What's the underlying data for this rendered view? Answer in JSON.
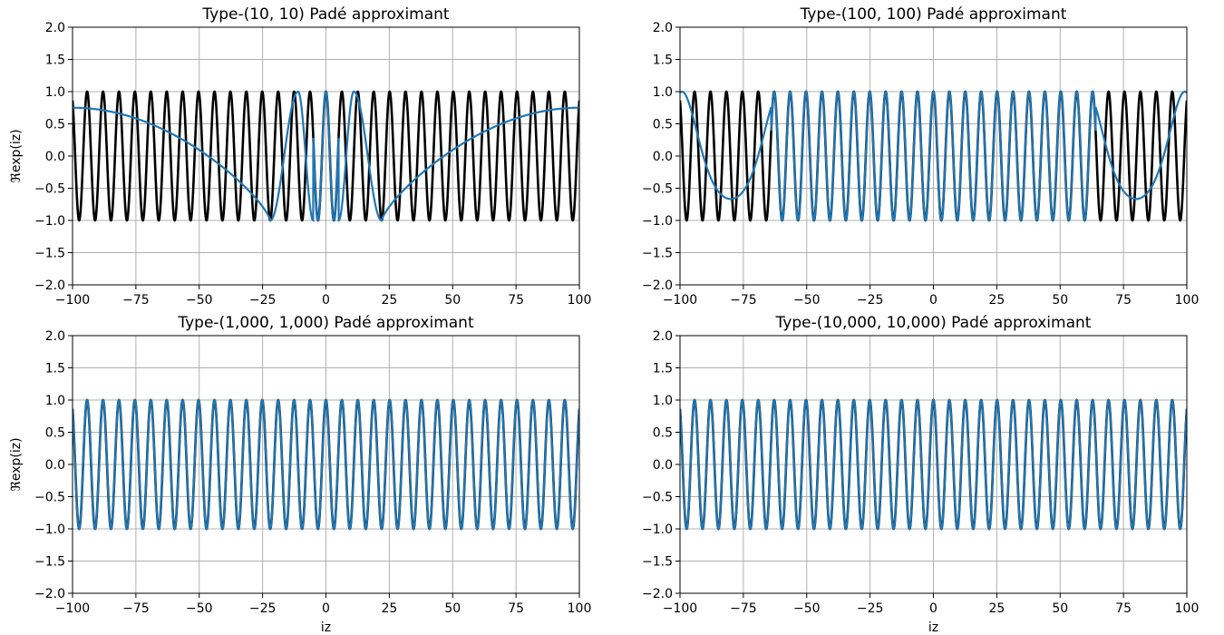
{
  "chart_data": [
    {
      "type": "line",
      "title": "Type-(10, 10) Padé approximant",
      "xlabel": "",
      "ylabel": "ℜexp(iz)",
      "xlim": [
        -100,
        100
      ],
      "ylim": [
        -2.0,
        2.0
      ],
      "xticks": [
        "−100",
        "−75",
        "−50",
        "−25",
        "0",
        "25",
        "50",
        "75",
        "100"
      ],
      "yticks": [
        "−2.0",
        "−1.5",
        "−1.0",
        "−0.5",
        "0.0",
        "0.5",
        "1.0",
        "1.5",
        "2.0"
      ],
      "grid": true,
      "series": [
        {
          "color": "#000000",
          "function": "cos(x)",
          "approx_kind": "exact"
        },
        {
          "color": "#1f77b4",
          "function": "Re of type-(10,10) Padé approximant of exp(ix)",
          "approx_kind": "pade",
          "n": 10
        }
      ]
    },
    {
      "type": "line",
      "title": "Type-(100, 100) Padé approximant",
      "xlabel": "",
      "ylabel": "",
      "xlim": [
        -100,
        100
      ],
      "ylim": [
        -2.0,
        2.0
      ],
      "xticks": [
        "−100",
        "−75",
        "−50",
        "−25",
        "0",
        "25",
        "50",
        "75",
        "100"
      ],
      "yticks": [
        "−2.0",
        "−1.5",
        "−1.0",
        "−0.5",
        "0.0",
        "0.5",
        "1.0",
        "1.5",
        "2.0"
      ],
      "grid": true,
      "series": [
        {
          "color": "#000000",
          "function": "cos(x)",
          "approx_kind": "exact"
        },
        {
          "color": "#1f77b4",
          "function": "Re of type-(100,100) Padé approximant of exp(ix)",
          "approx_kind": "pade",
          "n": 100
        }
      ]
    },
    {
      "type": "line",
      "title": "Type-(1,000, 1,000) Padé approximant",
      "xlabel": "iz",
      "ylabel": "ℜexp(iz)",
      "xlim": [
        -100,
        100
      ],
      "ylim": [
        -2.0,
        2.0
      ],
      "xticks": [
        "−100",
        "−75",
        "−50",
        "−25",
        "0",
        "25",
        "50",
        "75",
        "100"
      ],
      "yticks": [
        "−2.0",
        "−1.5",
        "−1.0",
        "−0.5",
        "0.0",
        "0.5",
        "1.0",
        "1.5",
        "2.0"
      ],
      "grid": true,
      "series": [
        {
          "color": "#000000",
          "function": "cos(x)",
          "approx_kind": "exact"
        },
        {
          "color": "#1f77b4",
          "function": "Re of type-(1000,1000) Padé approximant of exp(ix)",
          "approx_kind": "pade",
          "n": 1000
        }
      ]
    },
    {
      "type": "line",
      "title": "Type-(10,000, 10,000) Padé approximant",
      "xlabel": "iz",
      "ylabel": "",
      "xlim": [
        -100,
        100
      ],
      "ylim": [
        -2.0,
        2.0
      ],
      "xticks": [
        "−100",
        "−75",
        "−50",
        "−25",
        "0",
        "25",
        "50",
        "75",
        "100"
      ],
      "yticks": [
        "−2.0",
        "−1.5",
        "−1.0",
        "−0.5",
        "0.0",
        "0.5",
        "1.0",
        "1.5",
        "2.0"
      ],
      "grid": true,
      "series": [
        {
          "color": "#000000",
          "function": "cos(x)",
          "approx_kind": "exact"
        },
        {
          "color": "#1f77b4",
          "function": "Re of type-(10000,10000) Padé approximant of exp(ix)",
          "approx_kind": "pade",
          "n": 10000
        }
      ]
    }
  ]
}
